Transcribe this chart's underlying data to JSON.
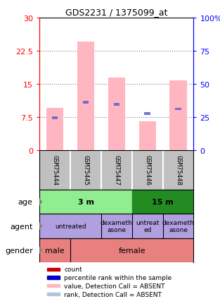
{
  "title": "GDS2231 / 1375099_at",
  "samples": [
    "GSM75444",
    "GSM75445",
    "GSM75447",
    "GSM75446",
    "GSM75448"
  ],
  "bar_values": [
    9.5,
    24.5,
    16.5,
    6.5,
    15.8
  ],
  "blue_marker_pos": [
    7.0,
    10.5,
    10.0,
    8.0,
    9.0
  ],
  "ylim_left": [
    0,
    30
  ],
  "ylim_right": [
    0,
    100
  ],
  "yticks_left": [
    0,
    7.5,
    15,
    22.5,
    30
  ],
  "yticks_right": [
    0,
    25,
    50,
    75,
    100
  ],
  "bar_color": "#FFB6C1",
  "blue_color": "#6666CC",
  "age_color_3m": "#90EE90",
  "age_color_15m": "#228B22",
  "agent_color": "#B0A0E0",
  "gender_color": "#E88080",
  "sample_bg_color": "#C0C0C0",
  "legend_items": [
    {
      "color": "#CC0000",
      "label": "count"
    },
    {
      "color": "#0000CC",
      "label": "percentile rank within the sample"
    },
    {
      "color": "#FFB6C1",
      "label": "value, Detection Call = ABSENT"
    },
    {
      "color": "#B0C4DE",
      "label": "rank, Detection Call = ABSENT"
    }
  ]
}
